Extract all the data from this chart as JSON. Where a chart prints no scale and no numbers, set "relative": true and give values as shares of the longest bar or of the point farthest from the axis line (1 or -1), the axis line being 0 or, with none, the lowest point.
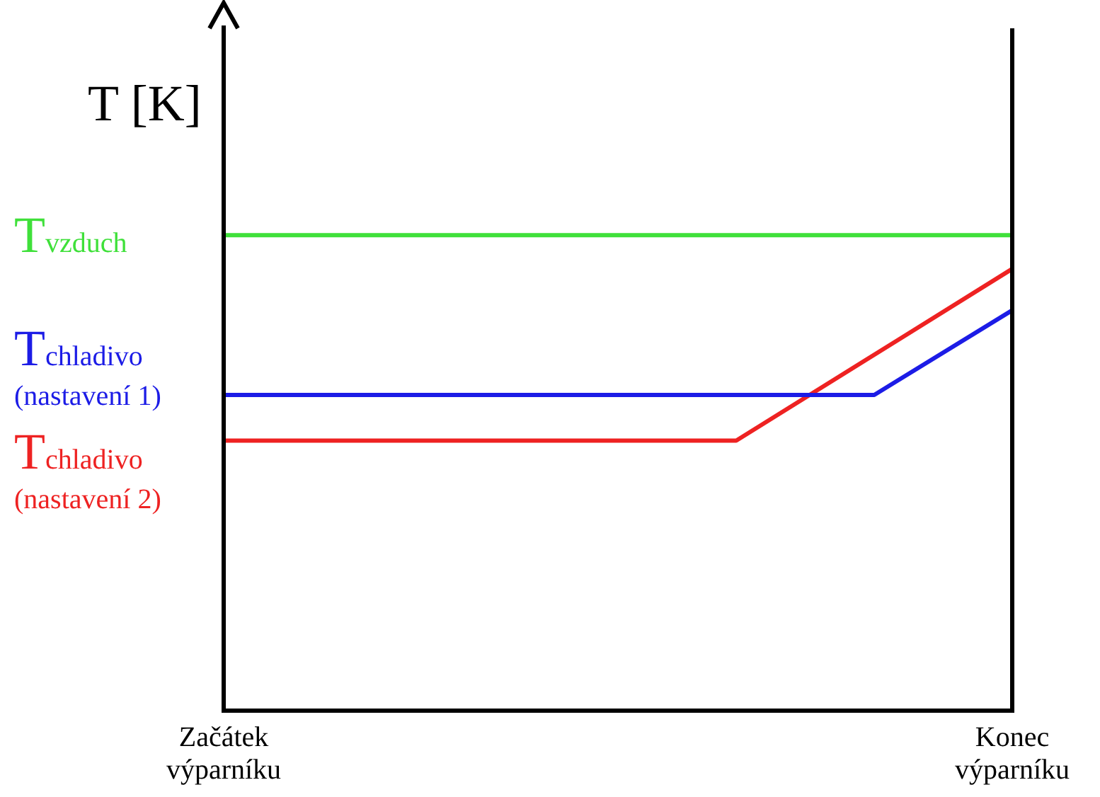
{
  "chart_data": {
    "type": "line",
    "relative": true,
    "ylabel": "T [K]",
    "legend": false,
    "marker": "none",
    "line_style": "solid",
    "categories": [
      "Začátek výparníku",
      null,
      null,
      null,
      null,
      null,
      null,
      null,
      null,
      null,
      null,
      null,
      null,
      null,
      null,
      null,
      null,
      null,
      null,
      null,
      null,
      null,
      null,
      null,
      null,
      null,
      null,
      null,
      null,
      null,
      null,
      null,
      null,
      null,
      null,
      null,
      null,
      null,
      null,
      null,
      "Konec výparníku"
    ],
    "series": [
      {
        "name": "T$_{vzduch}$",
        "color": "#3fe03a",
        "values": [
          1,
          null,
          null,
          null,
          null,
          null,
          null,
          null,
          null,
          null,
          null,
          null,
          null,
          null,
          null,
          null,
          null,
          null,
          null,
          null,
          null,
          null,
          null,
          null,
          null,
          null,
          null,
          null,
          null,
          null,
          null,
          null,
          null,
          null,
          null,
          null,
          null,
          null,
          null,
          null,
          1
        ]
      },
      {
        "name": "T$_{chladivo}$ (nastavení 1)",
        "color": "#1c1ce6",
        "values": [
          0.664,
          null,
          null,
          null,
          null,
          null,
          null,
          null,
          null,
          null,
          null,
          null,
          null,
          null,
          null,
          null,
          null,
          null,
          null,
          null,
          null,
          null,
          null,
          null,
          null,
          null,
          null,
          null,
          null,
          null,
          null,
          null,
          null,
          0.664,
          null,
          null,
          null,
          null,
          null,
          null,
          0.842
        ]
      },
      {
        "name": "T$_{chladivo}$ (nastavení 2)",
        "color": "#ee2222",
        "values": [
          0.568,
          null,
          null,
          null,
          null,
          null,
          null,
          null,
          null,
          null,
          null,
          null,
          null,
          null,
          null,
          null,
          null,
          null,
          null,
          null,
          null,
          null,
          null,
          null,
          null,
          null,
          0.568,
          null,
          null,
          null,
          null,
          null,
          null,
          null,
          null,
          null,
          null,
          null,
          null,
          null,
          0.929
        ]
      }
    ]
  }
}
